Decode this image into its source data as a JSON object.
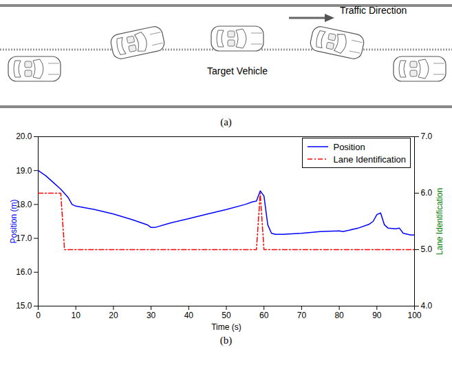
{
  "diagram": {
    "label": "(a)",
    "direction_label": "Traffic Direction",
    "vehicle_label": "Target Vehicle"
  },
  "chart_data": {
    "type": "line",
    "label": "(b)",
    "x_label": "Time (s)",
    "y_label": "Position (m)",
    "y2_label": "Lane Identification",
    "xlim": [
      0,
      100
    ],
    "xticks": [
      0,
      10,
      20,
      30,
      40,
      50,
      60,
      70,
      80,
      90,
      100
    ],
    "ylim": [
      15,
      20
    ],
    "yticks": [
      15,
      16,
      17,
      18,
      19,
      20
    ],
    "y2lim": [
      4,
      7
    ],
    "y2ticks": [
      4,
      5,
      6,
      7
    ],
    "grid": false,
    "legend": "top-right",
    "series": [
      {
        "name": "Position",
        "color": "#0000ff",
        "line_style": "solid",
        "x": [
          0,
          2,
          4,
          6,
          8,
          9,
          10,
          15,
          20,
          25,
          29,
          30,
          31,
          35,
          40,
          45,
          50,
          55,
          57,
          58,
          59,
          60,
          61,
          62,
          63,
          65,
          70,
          75,
          80,
          81,
          85,
          88,
          89,
          90,
          91,
          92,
          93,
          95,
          96,
          97,
          99,
          100
        ],
        "values": [
          19.0,
          18.85,
          18.65,
          18.45,
          18.2,
          18.0,
          17.95,
          17.85,
          17.72,
          17.55,
          17.4,
          17.32,
          17.32,
          17.45,
          17.58,
          17.72,
          17.85,
          18.0,
          18.08,
          18.1,
          18.4,
          18.25,
          17.4,
          17.15,
          17.12,
          17.12,
          17.15,
          17.2,
          17.22,
          17.2,
          17.3,
          17.42,
          17.5,
          17.7,
          17.75,
          17.4,
          17.3,
          17.28,
          17.3,
          17.15,
          17.1,
          17.1
        ]
      },
      {
        "name": "Lane Identification",
        "color": "#ff0000",
        "line_style": "dashdot",
        "axis": "y2",
        "x": [
          0,
          6,
          7,
          58,
          59,
          60,
          100
        ],
        "values": [
          6,
          6,
          5,
          5,
          6,
          5,
          5
        ]
      }
    ]
  }
}
